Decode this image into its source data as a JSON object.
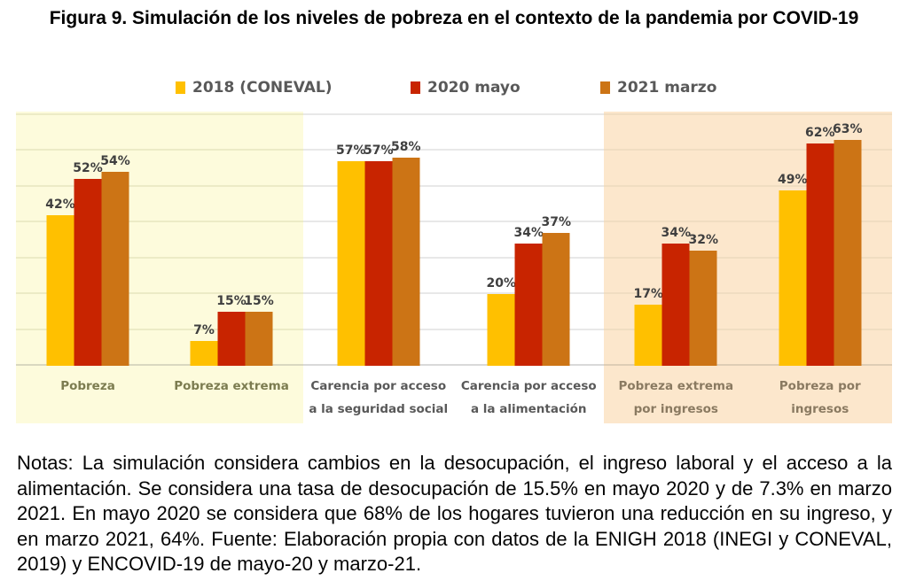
{
  "figure": {
    "title": "Figura 9. Simulación de los niveles de pobreza en el contexto de la pandemia por COVID-19"
  },
  "chart_data": {
    "type": "bar",
    "title": "Figura 9. Simulación de los niveles de pobreza en el contexto de la pandemia por COVID-19",
    "unit": "%",
    "ylim": [
      0,
      70
    ],
    "gridline_step": 10,
    "grid": true,
    "legend_position": "top",
    "xlabel": "",
    "ylabel": "",
    "categories": [
      "Pobreza",
      "Pobreza extrema",
      "Carencia por acceso a la seguridad social",
      "Carencia por acceso a la alimentación",
      "Pobreza extrema por ingresos",
      "Pobreza por ingresos"
    ],
    "category_label_lines": [
      [
        "Pobreza"
      ],
      [
        "Pobreza extrema"
      ],
      [
        "Carencia por acceso",
        "a la seguridad social"
      ],
      [
        "Carencia por acceso",
        "a la alimentación"
      ],
      [
        "Pobreza extrema",
        "por ingresos"
      ],
      [
        "Pobreza por",
        "ingresos"
      ]
    ],
    "series": [
      {
        "name": "2018 (CONEVAL)",
        "color": "#FFC000",
        "values": [
          42,
          7,
          57,
          20,
          17,
          49
        ]
      },
      {
        "name": "2020 mayo",
        "color": "#C82400",
        "values": [
          52,
          15,
          57,
          34,
          34,
          62
        ]
      },
      {
        "name": "2021 marzo",
        "color": "#CC7415",
        "values": [
          54,
          15,
          58,
          37,
          32,
          63
        ]
      }
    ],
    "sections": [
      {
        "category_indexes": [
          0,
          1
        ],
        "background": "#FDFBDC",
        "label_color": "#7C7C50",
        "gridline_color": "#ECEBC6",
        "axis_color": "#D9D8C0"
      },
      {
        "category_indexes": [
          2,
          3
        ],
        "background": "#FFFFFF",
        "label_color": "#595959",
        "gridline_color": "#E8E8E8",
        "axis_color": "#D9D9D9"
      },
      {
        "category_indexes": [
          4,
          5
        ],
        "background": "#FCE7CC",
        "label_color": "#8A7A61",
        "gridline_color": "#F0DDC1",
        "axis_color": "#DECDB5"
      }
    ],
    "value_label_color": "#3F3F3F"
  },
  "notes": {
    "text": "Notas: La simulación considera cambios en la desocupación, el ingreso laboral y el acceso a la alimentación. Se considera una tasa de desocupación de 15.5% en mayo 2020 y de 7.3% en marzo 2021. En mayo 2020 se considera que 68% de los hogares tuvieron una reducción en su ingreso, y en marzo 2021, 64%. Fuente: Elaboración propia con datos de la ENIGH 2018 (INEGI y CONEVAL, 2019) y ENCOVID-19 de mayo-20 y marzo-21."
  }
}
